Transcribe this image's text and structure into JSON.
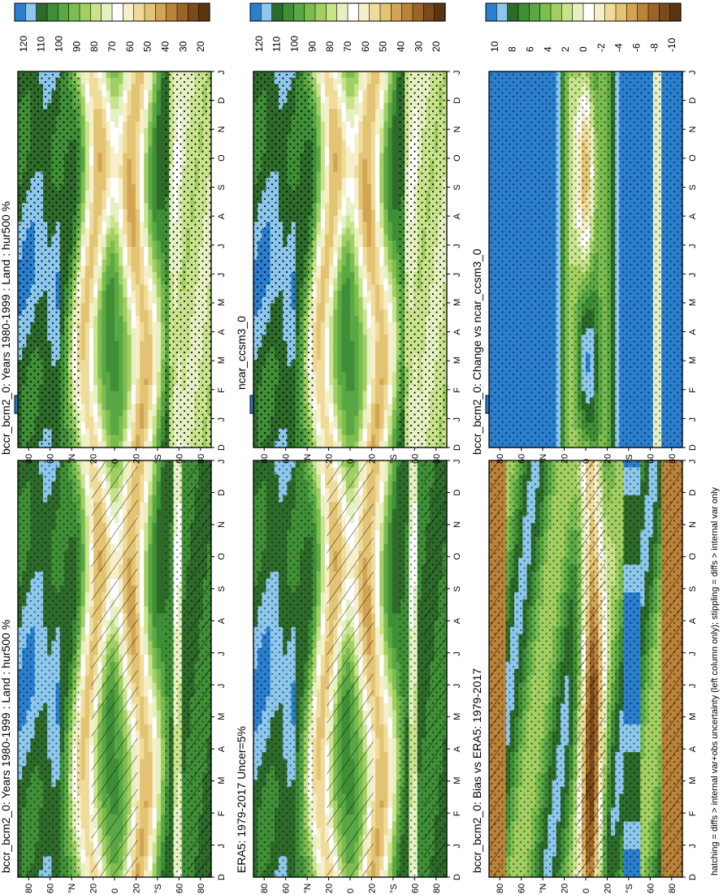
{
  "footnote": "hatching = diffs > internal var+obs uncertainty (left column only); stippling = diffs > internal var only",
  "months": [
    "J",
    "F",
    "M",
    "A",
    "M",
    "J",
    "J",
    "A",
    "S",
    "O",
    "N",
    "D",
    "J"
  ],
  "month_start_label": "D",
  "lat_ticks": [
    "80",
    "60",
    "°N",
    "20",
    "0",
    "20",
    "°S",
    "60",
    "80"
  ],
  "abs_colorbar": {
    "labels": [
      "120",
      "110",
      "100",
      "90",
      "80",
      "70",
      "60",
      "50",
      "40",
      "30",
      "20"
    ],
    "colors": [
      "#2b7fcf",
      "#8cc8ee",
      "#2e6b2a",
      "#3f8f36",
      "#5aa845",
      "#7bbd4f",
      "#a2cf61",
      "#c9e38c",
      "#e5f1c3",
      "#ffffff",
      "#f7efc9",
      "#efdc9b",
      "#e2c474",
      "#d2a453",
      "#bb833a",
      "#9c6428",
      "#7a4a1c",
      "#5b3512"
    ]
  },
  "diff_colorbar": {
    "labels": [
      "10",
      "8",
      "6",
      "4",
      "2",
      "0",
      "-2",
      "-4",
      "-6",
      "-8",
      "-10"
    ],
    "colors": [
      "#2b7fcf",
      "#8cc8ee",
      "#2e6b2a",
      "#3f8f36",
      "#5aa845",
      "#7bbd4f",
      "#a2cf61",
      "#c9e38c",
      "#e5f1c3",
      "#ffffff",
      "#f7efc9",
      "#efdc9b",
      "#e2c474",
      "#d2a453",
      "#bb833a",
      "#9c6428",
      "#7a4a1c",
      "#5b3512"
    ]
  },
  "panels": [
    {
      "id": "model-left",
      "title": "bccr_bcm2_0: Years 1980-1999 : Land : hur500 %",
      "kind": "abs",
      "hatch": true
    },
    {
      "id": "model-right",
      "title": "bccr_bcm2_0: Years 1980-1999 : Land : hur500 %",
      "kind": "abs",
      "hatch": false
    },
    {
      "id": "obs",
      "title": "ERA5: 1979-2017 Uncer=5%",
      "kind": "abs",
      "hatch": true
    },
    {
      "id": "ref-model",
      "title": "ncar_ccsm3_0",
      "kind": "abs",
      "hatch": false
    },
    {
      "id": "bias",
      "title": "bccr_bcm2_0: Bias vs ERA5: 1979-2017",
      "kind": "diff",
      "hatch": true
    },
    {
      "id": "change",
      "title": "bccr_bcm2_0: Change vs ncar_ccsm3_0",
      "kind": "diff",
      "hatch": false
    }
  ],
  "chart_data": {
    "type": "heatmap",
    "x": [
      "D",
      "J",
      "F",
      "M",
      "A",
      "M",
      "J",
      "J",
      "A",
      "S",
      "O",
      "N",
      "D",
      "J"
    ],
    "y_ticks": [
      "80",
      "60",
      "°N",
      "20",
      "0",
      "20",
      "°S",
      "60",
      "80"
    ],
    "colorbar_abs": [
      120,
      110,
      100,
      90,
      80,
      70,
      60,
      50,
      40,
      30,
      20
    ],
    "colorbar_diff": [
      10,
      8,
      6,
      4,
      2,
      0,
      -2,
      -4,
      -6,
      -8,
      -10
    ]
  }
}
